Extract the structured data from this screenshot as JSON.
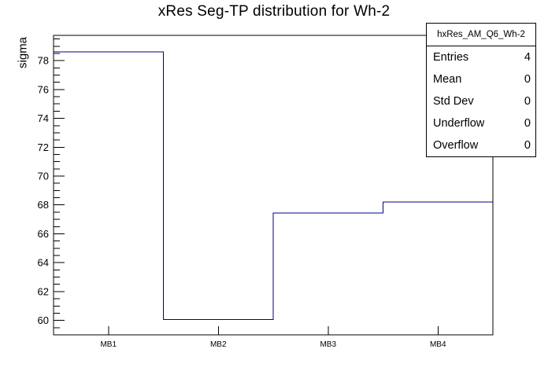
{
  "title": "xRes Seg-TP distribution for Wh-2",
  "chart_data": {
    "type": "step-histogram",
    "title": "xRes Seg-TP distribution for Wh-2",
    "categories": [
      "MB1",
      "MB2",
      "MB3",
      "MB4"
    ],
    "values": [
      78.6,
      60.05,
      67.45,
      68.2
    ],
    "xlabel": "",
    "ylabel": "sigma",
    "ylim": [
      59.0,
      79.75
    ],
    "y_major_ticks": [
      60,
      62,
      64,
      66,
      68,
      70,
      72,
      74,
      76,
      78
    ],
    "y_minor_step": 0.5,
    "grid": false,
    "legend_position": "none",
    "line_color": "#00008f",
    "frame_color": "#000000",
    "background_color": "#ffffff"
  },
  "stats": {
    "title": "hxRes_AM_Q6_Wh-2",
    "rows": [
      {
        "label": "Entries",
        "value": "4"
      },
      {
        "label": "Mean",
        "value": "0"
      },
      {
        "label": "Std Dev",
        "value": "0"
      },
      {
        "label": "Underflow",
        "value": "0"
      },
      {
        "label": "Overflow",
        "value": "0"
      }
    ]
  }
}
